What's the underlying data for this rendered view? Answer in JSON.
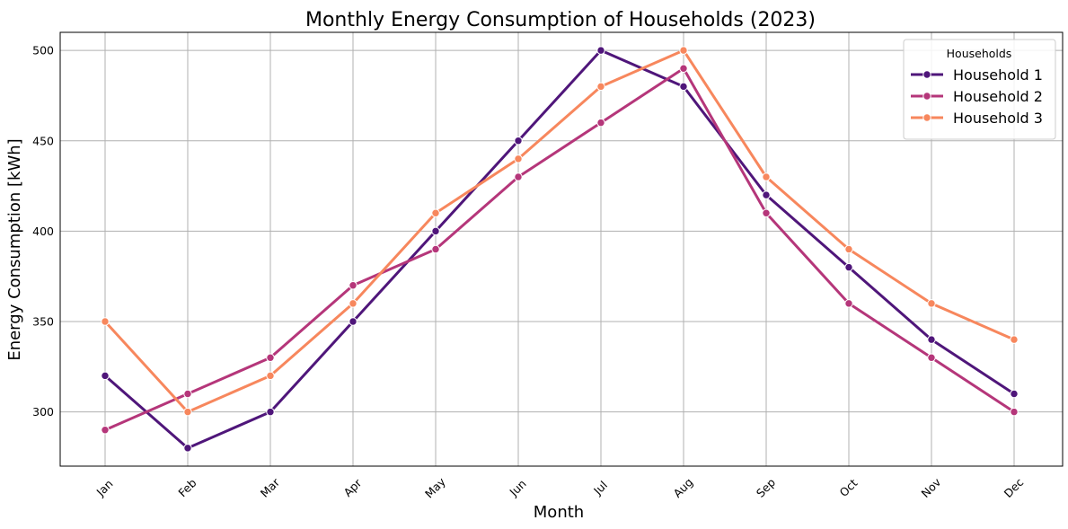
{
  "chart_data": {
    "type": "line",
    "title": "Monthly Energy Consumption of Households (2023)",
    "xlabel": "Month",
    "ylabel": "Energy Consumption [kWh]",
    "categories": [
      "Jan",
      "Feb",
      "Mar",
      "Apr",
      "May",
      "Jun",
      "Jul",
      "Aug",
      "Sep",
      "Oct",
      "Nov",
      "Dec"
    ],
    "ylim": [
      270,
      510
    ],
    "yticks": [
      300,
      350,
      400,
      450,
      500
    ],
    "grid": true,
    "legend": {
      "title": "Households",
      "placement": "top-right"
    },
    "series": [
      {
        "name": "Household 1",
        "color": "#4f167a",
        "values": [
          320,
          280,
          300,
          350,
          400,
          450,
          500,
          480,
          420,
          380,
          340,
          310
        ]
      },
      {
        "name": "Household 2",
        "color": "#b5367a",
        "values": [
          290,
          310,
          330,
          370,
          390,
          430,
          460,
          490,
          410,
          360,
          330,
          300
        ]
      },
      {
        "name": "Household 3",
        "color": "#f7875d",
        "values": [
          350,
          300,
          320,
          360,
          410,
          440,
          480,
          500,
          430,
          390,
          360,
          340
        ]
      }
    ]
  }
}
